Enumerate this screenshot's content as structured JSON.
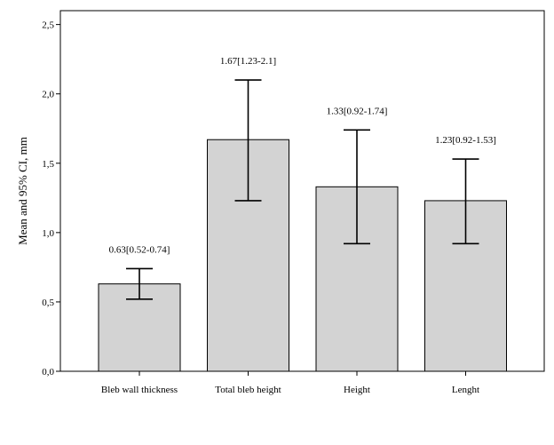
{
  "chart_data": {
    "type": "bar",
    "title": "",
    "xlabel": "",
    "ylabel": "Mean and 95% CI, mm",
    "ylim": [
      0,
      2.6
    ],
    "yticks": [
      0,
      0.5,
      1.0,
      1.5,
      2.0,
      2.5
    ],
    "ytick_labels": [
      "0,0",
      "0,5",
      "1,0",
      "1,5",
      "2,0",
      "2,5"
    ],
    "grid": false,
    "categories": [
      "Bleb wall thickness",
      "Total bleb height",
      "Height",
      "Lenght"
    ],
    "values": [
      0.63,
      1.67,
      1.33,
      1.23
    ],
    "ci_lower": [
      0.52,
      1.23,
      0.92,
      0.92
    ],
    "ci_upper": [
      0.74,
      2.1,
      1.74,
      1.53
    ],
    "annotations": [
      "0.63[0.52-0.74]",
      "1.67[1.23-2.1]",
      "1.33[0.92-1.74]",
      "1.23[0.92-1.53]"
    ],
    "colors": {
      "bar_fill": "#d3d3d3",
      "bar_stroke": "#000000",
      "error_bar": "#000000"
    }
  }
}
